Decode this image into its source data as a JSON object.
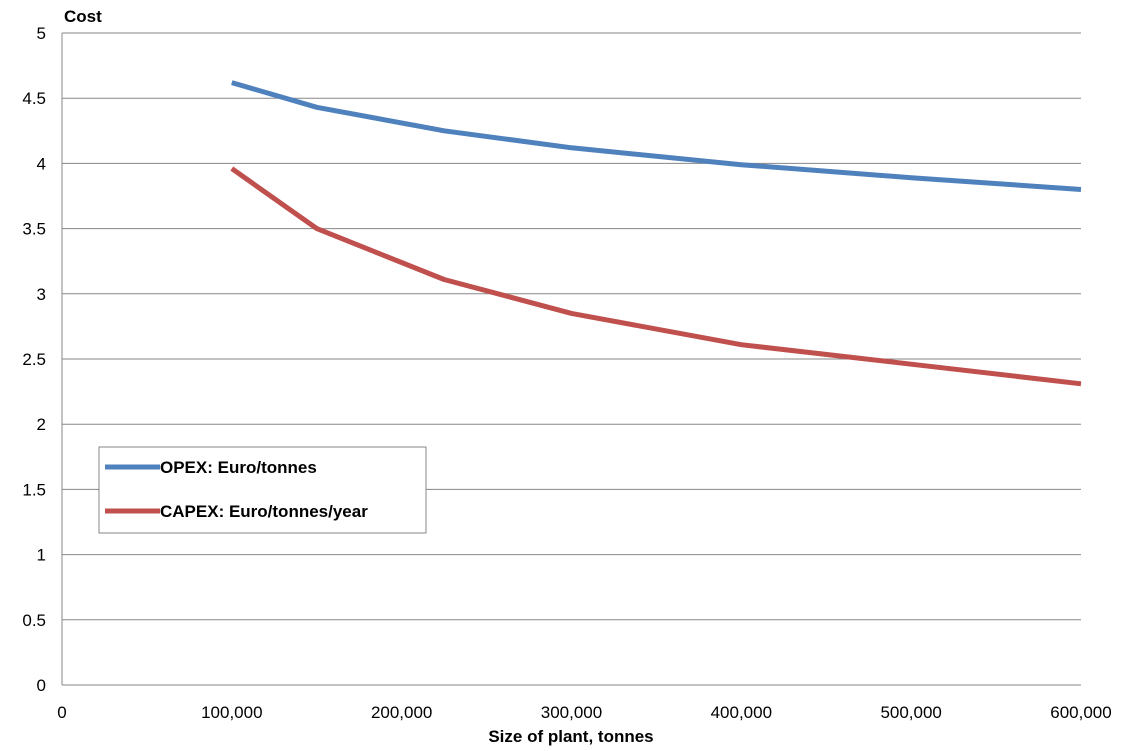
{
  "chart_data": {
    "type": "line",
    "ylabel": "Cost",
    "xlabel": "Size of plant, tonnes",
    "xlim": [
      0,
      600000
    ],
    "ylim": [
      0,
      5
    ],
    "x_ticks": [
      0,
      100000,
      200000,
      300000,
      400000,
      500000,
      600000
    ],
    "x_tick_labels": [
      "0",
      "100,000",
      "200,000",
      "300,000",
      "400,000",
      "500,000",
      "600,000"
    ],
    "y_ticks": [
      0,
      0.5,
      1,
      1.5,
      2,
      2.5,
      3,
      3.5,
      4,
      4.5,
      5
    ],
    "y_tick_labels": [
      "0",
      "0.5",
      "1",
      "1.5",
      "2",
      "2.5",
      "3",
      "3.5",
      "4",
      "4.5",
      "5"
    ],
    "grid": true,
    "legend_position": "left-middle",
    "series": [
      {
        "name": "OPEX: Euro/tonnes",
        "color": "#4F81BD",
        "x": [
          100000,
          150000,
          225000,
          300000,
          400000,
          500000,
          600000
        ],
        "y": [
          4.62,
          4.43,
          4.25,
          4.12,
          3.99,
          3.89,
          3.8
        ]
      },
      {
        "name": "CAPEX: Euro/tonnes/year",
        "color": "#C0504D",
        "x": [
          100000,
          150000,
          225000,
          300000,
          400000,
          500000,
          600000
        ],
        "y": [
          3.96,
          3.5,
          3.11,
          2.85,
          2.61,
          2.46,
          2.31
        ]
      }
    ]
  }
}
